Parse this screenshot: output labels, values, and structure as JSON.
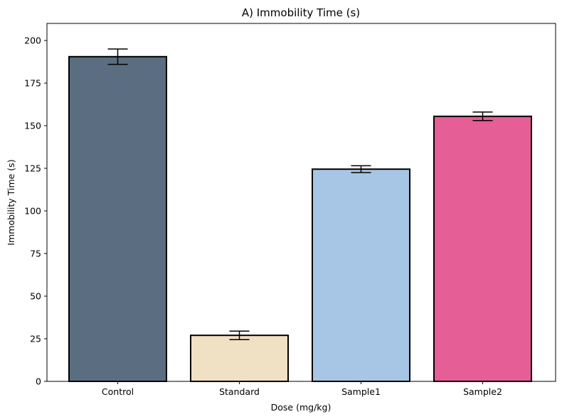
{
  "chart_data": {
    "type": "bar",
    "title": "A) Immobility Time (s)",
    "xlabel": "Dose (mg/kg)",
    "ylabel": "Immobility Time (s)",
    "categories": [
      "Control",
      "Standard",
      "Sample1",
      "Sample2"
    ],
    "values": [
      190.5,
      27,
      124.5,
      155.5
    ],
    "errors": [
      4.5,
      2.5,
      2.0,
      2.5
    ],
    "colors": [
      "#5b6d80",
      "#f0e1c4",
      "#a7c6e5",
      "#e55e95"
    ],
    "edge_color": "#000000",
    "ylim": [
      0,
      210
    ],
    "yticks": [
      0,
      25,
      50,
      75,
      100,
      125,
      150,
      175,
      200
    ],
    "grid": false,
    "legend": "none"
  }
}
